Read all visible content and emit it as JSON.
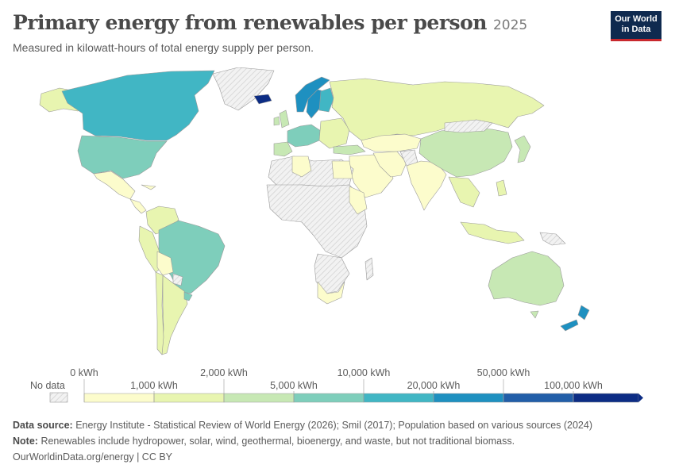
{
  "header": {
    "title": "Primary energy from renewables per person",
    "year": "2025",
    "subtitle": "Measured in kilowatt-hours of total energy supply per person.",
    "logo_line1": "Our World",
    "logo_line2": "in Data"
  },
  "legend": {
    "no_data_label": "No data",
    "top_labels": [
      "0 kWh",
      "2,000 kWh",
      "10,000 kWh",
      "50,000 kWh"
    ],
    "bottom_labels": [
      "1,000 kWh",
      "5,000 kWh",
      "20,000 kWh",
      "100,000 kWh"
    ],
    "bins": [
      {
        "from": 0,
        "to": 1000,
        "color": "#fcfccc"
      },
      {
        "from": 1000,
        "to": 2000,
        "color": "#e8f5b0"
      },
      {
        "from": 2000,
        "to": 5000,
        "color": "#c7e8b4"
      },
      {
        "from": 5000,
        "to": 10000,
        "color": "#7ecebb"
      },
      {
        "from": 10000,
        "to": 20000,
        "color": "#41b6c4"
      },
      {
        "from": 20000,
        "to": 50000,
        "color": "#1e90c0"
      },
      {
        "from": 50000,
        "to": 100000,
        "color": "#225ea8"
      },
      {
        "from": 100000,
        "to": null,
        "color": "#0c2c84"
      }
    ],
    "no_data_color": "#e6e6e6"
  },
  "map": {
    "regions": [
      {
        "name": "Canada",
        "bin": 4
      },
      {
        "name": "United States",
        "bin": 3
      },
      {
        "name": "Greenland",
        "bin": null
      },
      {
        "name": "Mexico",
        "bin": 0
      },
      {
        "name": "Brazil",
        "bin": 3
      },
      {
        "name": "Colombia",
        "bin": 1
      },
      {
        "name": "Peru",
        "bin": 1
      },
      {
        "name": "Argentina",
        "bin": 1
      },
      {
        "name": "Chile",
        "bin": 1
      },
      {
        "name": "Iceland",
        "bin": 7
      },
      {
        "name": "Norway",
        "bin": 5
      },
      {
        "name": "Sweden",
        "bin": 5
      },
      {
        "name": "Finland",
        "bin": 4
      },
      {
        "name": "Russia",
        "bin": 1
      },
      {
        "name": "China",
        "bin": 2
      },
      {
        "name": "India",
        "bin": 0
      },
      {
        "name": "Australia",
        "bin": 2
      },
      {
        "name": "New Zealand",
        "bin": 5
      },
      {
        "name": "South Africa",
        "bin": 0
      },
      {
        "name": "Africa (most)",
        "bin": null
      }
    ]
  },
  "footer": {
    "source_label": "Data source:",
    "source_text": "Energy Institute - Statistical Review of World Energy (2026); Smil (2017); Population based on various sources (2024)",
    "note_label": "Note:",
    "note_text": "Renewables include hydropower, solar, wind, geothermal, bioenergy, and waste, but not traditional biomass.",
    "credit": "OurWorldinData.org/energy | CC BY"
  }
}
